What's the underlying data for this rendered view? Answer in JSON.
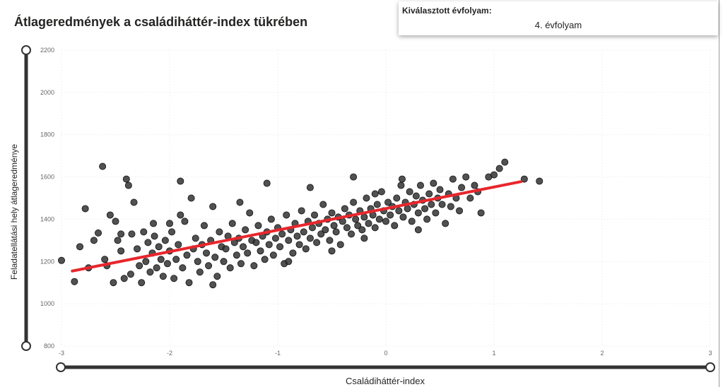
{
  "header": {
    "title": "Átlageredmények a családiháttér-index tükrében"
  },
  "filter_card": {
    "label": "Kiválasztott évfolyam:",
    "value": "4. évfolyam"
  },
  "chart_data": {
    "type": "scatter",
    "title": "Átlageredmények a családiháttér-index tükrében",
    "xlabel": "Családiháttér-index",
    "ylabel": "Feladatellátási hely átlageredménye",
    "xlim": [
      -3,
      3
    ],
    "ylim": [
      800,
      2200
    ],
    "xticks": [
      "-3",
      "-2",
      "-1",
      "0",
      "1",
      "2",
      "3"
    ],
    "yticks": [
      "800",
      "1000",
      "1200",
      "1400",
      "1600",
      "1800",
      "2000",
      "2200"
    ],
    "grid": true,
    "point_color": "#333333",
    "trend_color": "#e8262c",
    "trendline": [
      [
        -2.9,
        1155
      ],
      [
        1.25,
        1578
      ]
    ],
    "points": [
      [
        -3,
        1205
      ],
      [
        -2.88,
        1105
      ],
      [
        -2.83,
        1270
      ],
      [
        -2.78,
        1450
      ],
      [
        -2.75,
        1170
      ],
      [
        -2.7,
        1300
      ],
      [
        -2.66,
        1335
      ],
      [
        -2.62,
        1650
      ],
      [
        -2.6,
        1210
      ],
      [
        -2.58,
        1180
      ],
      [
        -2.55,
        1420
      ],
      [
        -2.52,
        1100
      ],
      [
        -2.5,
        1390
      ],
      [
        -2.48,
        1300
      ],
      [
        -2.45,
        1250
      ],
      [
        -2.42,
        1120
      ],
      [
        -2.4,
        1590
      ],
      [
        -2.38,
        1560
      ],
      [
        -2.36,
        1140
      ],
      [
        -2.35,
        1330
      ],
      [
        -2.33,
        1480
      ],
      [
        -2.3,
        1260
      ],
      [
        -2.28,
        1180
      ],
      [
        -2.26,
        1100
      ],
      [
        -2.24,
        1340
      ],
      [
        -2.22,
        1200
      ],
      [
        -2.2,
        1290
      ],
      [
        -2.18,
        1150
      ],
      [
        -2.16,
        1240
      ],
      [
        -2.14,
        1320
      ],
      [
        -2.12,
        1170
      ],
      [
        -2.1,
        1270
      ],
      [
        -2.08,
        1210
      ],
      [
        -2.06,
        1130
      ],
      [
        -2.04,
        1300
      ],
      [
        -2.02,
        1190
      ],
      [
        -2.0,
        1250
      ],
      [
        -1.98,
        1340
      ],
      [
        -1.96,
        1120
      ],
      [
        -1.94,
        1210
      ],
      [
        -1.92,
        1280
      ],
      [
        -1.9,
        1580
      ],
      [
        -1.88,
        1170
      ],
      [
        -1.86,
        1390
      ],
      [
        -1.84,
        1230
      ],
      [
        -1.82,
        1100
      ],
      [
        -1.8,
        1500
      ],
      [
        -1.78,
        1260
      ],
      [
        -1.76,
        1310
      ],
      [
        -1.74,
        1200
      ],
      [
        -1.72,
        1150
      ],
      [
        -1.7,
        1280
      ],
      [
        -1.68,
        1370
      ],
      [
        -1.66,
        1240
      ],
      [
        -1.64,
        1180
      ],
      [
        -1.62,
        1300
      ],
      [
        -1.6,
        1460
      ],
      [
        -1.58,
        1220
      ],
      [
        -1.56,
        1130
      ],
      [
        -1.54,
        1340
      ],
      [
        -1.52,
        1270
      ],
      [
        -1.5,
        1200
      ],
      [
        -1.48,
        1260
      ],
      [
        -1.46,
        1320
      ],
      [
        -1.44,
        1170
      ],
      [
        -1.42,
        1380
      ],
      [
        -1.4,
        1290
      ],
      [
        -1.38,
        1230
      ],
      [
        -1.36,
        1310
      ],
      [
        -1.34,
        1190
      ],
      [
        -1.32,
        1270
      ],
      [
        -1.3,
        1350
      ],
      [
        -1.28,
        1240
      ],
      [
        -1.26,
        1430
      ],
      [
        -1.24,
        1300
      ],
      [
        -1.22,
        1180
      ],
      [
        -1.2,
        1290
      ],
      [
        -1.18,
        1370
      ],
      [
        -1.16,
        1250
      ],
      [
        -1.14,
        1320
      ],
      [
        -1.12,
        1210
      ],
      [
        -1.1,
        1340
      ],
      [
        -1.08,
        1280
      ],
      [
        -1.06,
        1400
      ],
      [
        -1.04,
        1230
      ],
      [
        -1.02,
        1310
      ],
      [
        -1.0,
        1360
      ],
      [
        -0.98,
        1270
      ],
      [
        -0.96,
        1330
      ],
      [
        -0.94,
        1190
      ],
      [
        -0.92,
        1420
      ],
      [
        -0.9,
        1300
      ],
      [
        -0.88,
        1350
      ],
      [
        -0.86,
        1240
      ],
      [
        -0.84,
        1380
      ],
      [
        -0.82,
        1320
      ],
      [
        -0.8,
        1280
      ],
      [
        -0.78,
        1440
      ],
      [
        -0.76,
        1340
      ],
      [
        -0.74,
        1260
      ],
      [
        -0.72,
        1390
      ],
      [
        -0.7,
        1310
      ],
      [
        -0.68,
        1360
      ],
      [
        -0.66,
        1420
      ],
      [
        -0.64,
        1290
      ],
      [
        -0.62,
        1380
      ],
      [
        -0.6,
        1330
      ],
      [
        -0.58,
        1470
      ],
      [
        -0.56,
        1350
      ],
      [
        -0.54,
        1400
      ],
      [
        -0.52,
        1300
      ],
      [
        -0.5,
        1430
      ],
      [
        -0.48,
        1370
      ],
      [
        -0.46,
        1340
      ],
      [
        -0.44,
        1410
      ],
      [
        -0.42,
        1280
      ],
      [
        -0.4,
        1390
      ],
      [
        -0.38,
        1450
      ],
      [
        -0.36,
        1360
      ],
      [
        -0.34,
        1420
      ],
      [
        -0.32,
        1330
      ],
      [
        -0.3,
        1480
      ],
      [
        -0.28,
        1400
      ],
      [
        -0.26,
        1370
      ],
      [
        -0.24,
        1440
      ],
      [
        -0.22,
        1350
      ],
      [
        -0.2,
        1410
      ],
      [
        -0.18,
        1500
      ],
      [
        -0.16,
        1380
      ],
      [
        -0.14,
        1450
      ],
      [
        -0.12,
        1420
      ],
      [
        -0.1,
        1360
      ],
      [
        -0.08,
        1470
      ],
      [
        -0.06,
        1400
      ],
      [
        -0.04,
        1530
      ],
      [
        -0.02,
        1440
      ],
      [
        0.0,
        1390
      ],
      [
        0.02,
        1480
      ],
      [
        0.04,
        1420
      ],
      [
        0.06,
        1460
      ],
      [
        0.08,
        1370
      ],
      [
        0.1,
        1500
      ],
      [
        0.12,
        1440
      ],
      [
        0.14,
        1560
      ],
      [
        0.16,
        1410
      ],
      [
        0.18,
        1480
      ],
      [
        0.2,
        1450
      ],
      [
        0.22,
        1530
      ],
      [
        0.24,
        1390
      ],
      [
        0.26,
        1470
      ],
      [
        0.28,
        1510
      ],
      [
        0.3,
        1430
      ],
      [
        0.32,
        1560
      ],
      [
        0.34,
        1490
      ],
      [
        0.36,
        1450
      ],
      [
        0.38,
        1400
      ],
      [
        0.4,
        1520
      ],
      [
        0.42,
        1470
      ],
      [
        0.44,
        1570
      ],
      [
        0.46,
        1430
      ],
      [
        0.48,
        1500
      ],
      [
        0.5,
        1540
      ],
      [
        0.52,
        1470
      ],
      [
        0.55,
        1380
      ],
      [
        0.58,
        1520
      ],
      [
        0.6,
        1460
      ],
      [
        0.62,
        1590
      ],
      [
        0.65,
        1500
      ],
      [
        0.68,
        1440
      ],
      [
        0.7,
        1550
      ],
      [
        0.74,
        1600
      ],
      [
        0.78,
        1500
      ],
      [
        0.82,
        1560
      ],
      [
        0.85,
        1530
      ],
      [
        0.88,
        1430
      ],
      [
        0.95,
        1600
      ],
      [
        1.0,
        1610
      ],
      [
        1.05,
        1640
      ],
      [
        1.1,
        1670
      ],
      [
        1.28,
        1590
      ],
      [
        1.42,
        1580
      ],
      [
        -0.7,
        1550
      ],
      [
        -0.3,
        1600
      ],
      [
        -1.1,
        1570
      ],
      [
        -1.35,
        1480
      ],
      [
        -2.0,
        1380
      ],
      [
        -1.6,
        1090
      ],
      [
        -0.9,
        1200
      ],
      [
        -0.5,
        1250
      ],
      [
        -0.2,
        1310
      ],
      [
        0.3,
        1350
      ],
      [
        -1.9,
        1420
      ],
      [
        -2.45,
        1330
      ],
      [
        -2.15,
        1380
      ],
      [
        -0.1,
        1520
      ],
      [
        0.15,
        1590
      ]
    ]
  },
  "sliders": {
    "y_range": [
      "800",
      "2200"
    ],
    "x_range": [
      "-3",
      "3"
    ]
  }
}
